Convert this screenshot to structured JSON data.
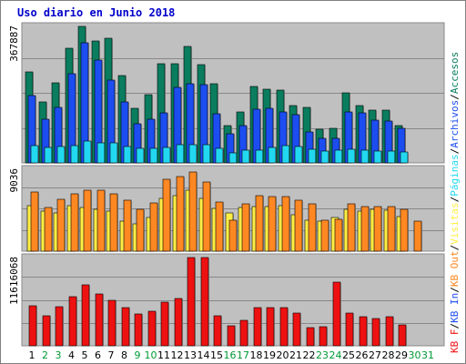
{
  "title": "Uso diario en Junio 2018",
  "chart_data": {
    "type": "bar",
    "categories": [
      "1",
      "2",
      "3",
      "4",
      "5",
      "6",
      "7",
      "8",
      "9",
      "10",
      "11",
      "12",
      "13",
      "14",
      "15",
      "16",
      "17",
      "18",
      "19",
      "20",
      "21",
      "22",
      "23",
      "24",
      "25",
      "26",
      "27",
      "28",
      "29",
      "30",
      "31"
    ],
    "weekend_days": [
      "2",
      "3",
      "9",
      "10",
      "16",
      "17",
      "23",
      "24",
      "30",
      "31"
    ],
    "panels": [
      {
        "ytick": "367887",
        "ymax": 367887,
        "series": [
          {
            "name": "Accesos",
            "color": "#0a7d5e",
            "values": [
              245300,
              164000,
              215500,
              308000,
              367887,
              328000,
              337000,
              235500,
              147000,
              184000,
              267000,
              267000,
              313000,
              266000,
              214000,
              100000,
              138000,
              206000,
              198000,
              196000,
              155000,
              149000,
              91000,
              93000,
              189000,
              154000,
              142000,
              142000,
              101000,
              0,
              0
            ]
          },
          {
            "name": "Archivos",
            "color": "#1c4df0",
            "values": [
              182000,
              118500,
              149500,
              240000,
              323000,
              277000,
              223000,
              165000,
              105000,
              117000,
              136000,
              204000,
              214000,
              210000,
              133000,
              78000,
              100500,
              145000,
              148000,
              137000,
              129000,
              84000,
              67000,
              65000,
              138000,
              135000,
              115000,
              114000,
              93000,
              0,
              0
            ]
          },
          {
            "name": "Páginas",
            "color": "#22d8f0",
            "values": [
              45500,
              40500,
              44500,
              46500,
              59000,
              55000,
              54500,
              45000,
              39000,
              38500,
              42000,
              49000,
              49500,
              49500,
              39000,
              28000,
              33500,
              35500,
              41500,
              46500,
              43500,
              37000,
              31500,
              33500,
              37000,
              35000,
              32000,
              31500,
              28500,
              0,
              0
            ]
          }
        ]
      },
      {
        "ytick": "9036",
        "ymax": 9036,
        "series": [
          {
            "name": "Visitas",
            "color": "#ffee44",
            "values": [
              5050,
              4400,
              4200,
              5000,
              4850,
              4650,
              4450,
              3300,
              3000,
              3700,
              5850,
              6150,
              6750,
              5850,
              4700,
              4200,
              4850,
              4900,
              4900,
              5050,
              4050,
              3400,
              3300,
              3750,
              4650,
              4400,
              4650,
              4550,
              3800,
              0,
              0
            ]
          },
          {
            "name": "KB Out",
            "color": "#ff8822",
            "values": [
              6550,
              4850,
              5700,
              6350,
              6700,
              6700,
              6350,
              5650,
              4650,
              5350,
              7950,
              8200,
              8700,
              7600,
              5400,
              3400,
              5200,
              6100,
              6050,
              6050,
              5600,
              5200,
              3450,
              3550,
              5200,
              4950,
              4950,
              4950,
              4650,
              3350,
              0
            ]
          }
        ]
      },
      {
        "ytick": "11616068",
        "ymax": 11616068,
        "series": [
          {
            "name": "KB F",
            "color": "#ee1111",
            "values": [
              5300000,
              4000000,
              5200000,
              6500000,
              8000000,
              6800000,
              6000000,
              5000000,
              4200000,
              4500000,
              5700000,
              6200000,
              11616068,
              11616068,
              4000000,
              2600000,
              3400000,
              5000000,
              5000000,
              5000000,
              4300000,
              2400000,
              2500000,
              8400000,
              4300000,
              3800000,
              3600000,
              3800000,
              2700000,
              0,
              0
            ]
          }
        ]
      }
    ],
    "legend_right": [
      {
        "label": "Accesos",
        "color": "#0a7d5e"
      },
      {
        "label": "/",
        "color": "#000000"
      },
      {
        "label": "Archivos",
        "color": "#1c4df0"
      },
      {
        "label": "/",
        "color": "#000000"
      },
      {
        "label": "Páginas",
        "color": "#22d8f0"
      },
      {
        "label": "/",
        "color": "#000000"
      },
      {
        "label": "Visitas",
        "color": "#ffee44"
      },
      {
        "label": "/",
        "color": "#000000"
      },
      {
        "label": "KB Out",
        "color": "#ff8822"
      },
      {
        "label": "/",
        "color": "#000000"
      },
      {
        "label": "KB In",
        "color": "#1c4df0"
      },
      {
        "label": "/",
        "color": "#000000"
      },
      {
        "label": "KB F",
        "color": "#ee1111"
      }
    ],
    "weekday_color": "#000000",
    "weekend_color": "#009933",
    "grid": true
  }
}
